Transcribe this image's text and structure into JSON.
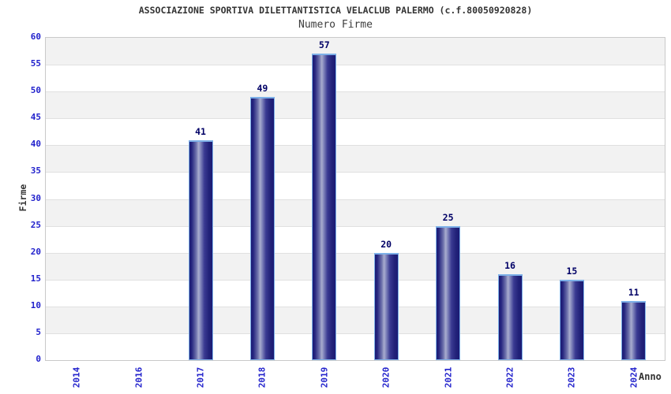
{
  "chart_data": {
    "type": "bar",
    "title": "ASSOCIAZIONE SPORTIVA DILETTANTISTICA VELACLUB PALERMO (c.f.80050920828)",
    "subtitle": "Numero Firme",
    "xlabel": "Anno",
    "ylabel": "Firme",
    "categories": [
      "2014",
      "2016",
      "2017",
      "2018",
      "2019",
      "2020",
      "2021",
      "2022",
      "2023",
      "2024"
    ],
    "values": [
      null,
      null,
      41,
      49,
      57,
      20,
      25,
      16,
      15,
      11
    ],
    "ylim": [
      0,
      60
    ],
    "yticks": [
      0,
      5,
      10,
      15,
      20,
      25,
      30,
      35,
      40,
      45,
      50,
      55,
      60
    ],
    "grid": "horizontal-bands-alternating",
    "legend": "none",
    "colors": {
      "tick_label": "#2222cc",
      "value_label": "#000066",
      "title": "#333333",
      "axis_label": "#333333",
      "bar_dark": "#1b1b74",
      "bar_mid": "#3a3a92",
      "bar_light": "#a9adcf",
      "bar_border": "#7db0e8",
      "band_gray": "#f2f2f2",
      "band_white": "#ffffff",
      "gridline": "#e0e0e0",
      "plot_border": "#c9c9c9",
      "background": "#ffffff"
    }
  }
}
